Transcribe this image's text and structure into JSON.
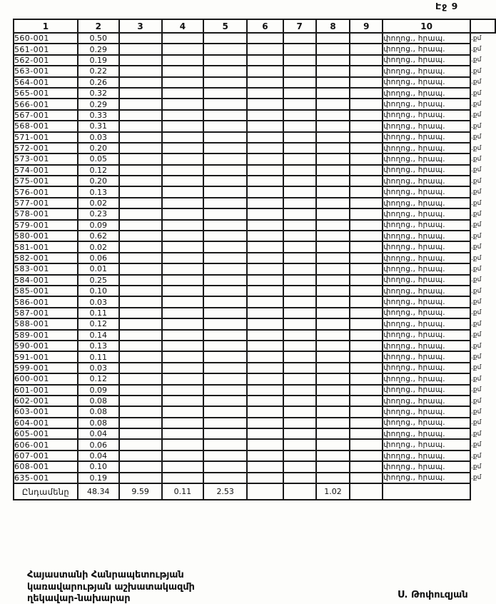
{
  "page": {
    "number_label": "Էջ 9"
  },
  "table": {
    "headers": [
      "1",
      "2",
      "3",
      "4",
      "5",
      "6",
      "7",
      "8",
      "9",
      "10"
    ],
    "note_all_rows": "փողոց., հրապ.",
    "margin_note_all_rows": ".քմ",
    "rows": [
      {
        "code": "560-001",
        "value": "0.50"
      },
      {
        "code": "561-001",
        "value": "0.29"
      },
      {
        "code": "562-001",
        "value": "0.19"
      },
      {
        "code": "563-001",
        "value": "0.22"
      },
      {
        "code": "564-001",
        "value": "0.26"
      },
      {
        "code": "565-001",
        "value": "0.32"
      },
      {
        "code": "566-001",
        "value": "0.29"
      },
      {
        "code": "567-001",
        "value": "0.33"
      },
      {
        "code": "568-001",
        "value": "0.31"
      },
      {
        "code": "571-001",
        "value": "0.03"
      },
      {
        "code": "572-001",
        "value": "0.20"
      },
      {
        "code": "573-001",
        "value": "0.05"
      },
      {
        "code": "574-001",
        "value": "0.12"
      },
      {
        "code": "575-001",
        "value": "0.20"
      },
      {
        "code": "576-001",
        "value": "0.13"
      },
      {
        "code": "577-001",
        "value": "0.02"
      },
      {
        "code": "578-001",
        "value": "0.23"
      },
      {
        "code": "579-001",
        "value": "0.09"
      },
      {
        "code": "580-001",
        "value": "0.62"
      },
      {
        "code": "581-001",
        "value": "0.02"
      },
      {
        "code": "582-001",
        "value": "0.06"
      },
      {
        "code": "583-001",
        "value": "0.01"
      },
      {
        "code": "584-001",
        "value": "0.25"
      },
      {
        "code": "585-001",
        "value": "0.10"
      },
      {
        "code": "586-001",
        "value": "0.03"
      },
      {
        "code": "587-001",
        "value": "0.11"
      },
      {
        "code": "588-001",
        "value": "0.12"
      },
      {
        "code": "589-001",
        "value": "0.14"
      },
      {
        "code": "590-001",
        "value": "0.13"
      },
      {
        "code": "591-001",
        "value": "0.11"
      },
      {
        "code": "599-001",
        "value": "0.03"
      },
      {
        "code": "600-001",
        "value": "0.12"
      },
      {
        "code": "601-001",
        "value": "0.09"
      },
      {
        "code": "602-001",
        "value": "0.08"
      },
      {
        "code": "603-001",
        "value": "0.08"
      },
      {
        "code": "604-001",
        "value": "0.08"
      },
      {
        "code": "605-001",
        "value": "0.04"
      },
      {
        "code": "606-001",
        "value": "0.06"
      },
      {
        "code": "607-001",
        "value": "0.04"
      },
      {
        "code": "608-001",
        "value": "0.10"
      },
      {
        "code": "635-001",
        "value": "0.19"
      }
    ],
    "total": {
      "label": "Ընդամենը",
      "col2": "48.34",
      "col3": "9.59",
      "col4": "0.11",
      "col5": "2.53",
      "col8": "1.02"
    }
  },
  "footer": {
    "lines": [
      "Հայաստանի Հանրապետության",
      "կառավարության աշխատակազմի",
      "ղեկավար-նախարար"
    ],
    "signature": "Ս. Թոփուզյան"
  }
}
